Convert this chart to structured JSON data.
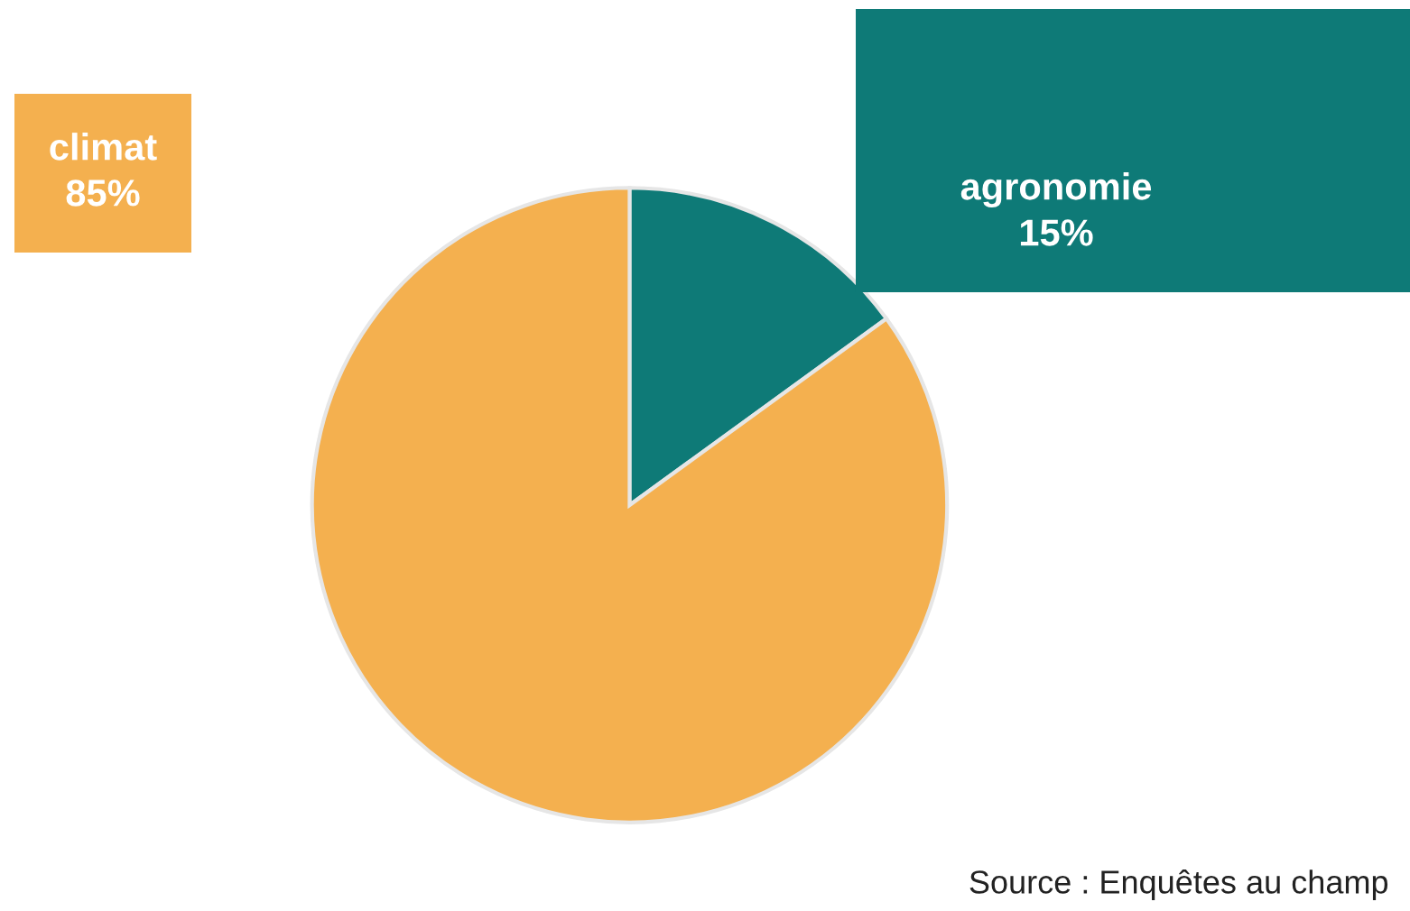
{
  "chart_data": {
    "type": "pie",
    "categories": [
      "agronomie",
      "climat"
    ],
    "values": [
      15,
      85
    ],
    "colors": [
      "#0e7a77",
      "#f4b04f"
    ],
    "value_labels": [
      "15%",
      "85%"
    ],
    "annotations": [
      "Source : Enquêtes au champ"
    ],
    "legend": false
  }
}
